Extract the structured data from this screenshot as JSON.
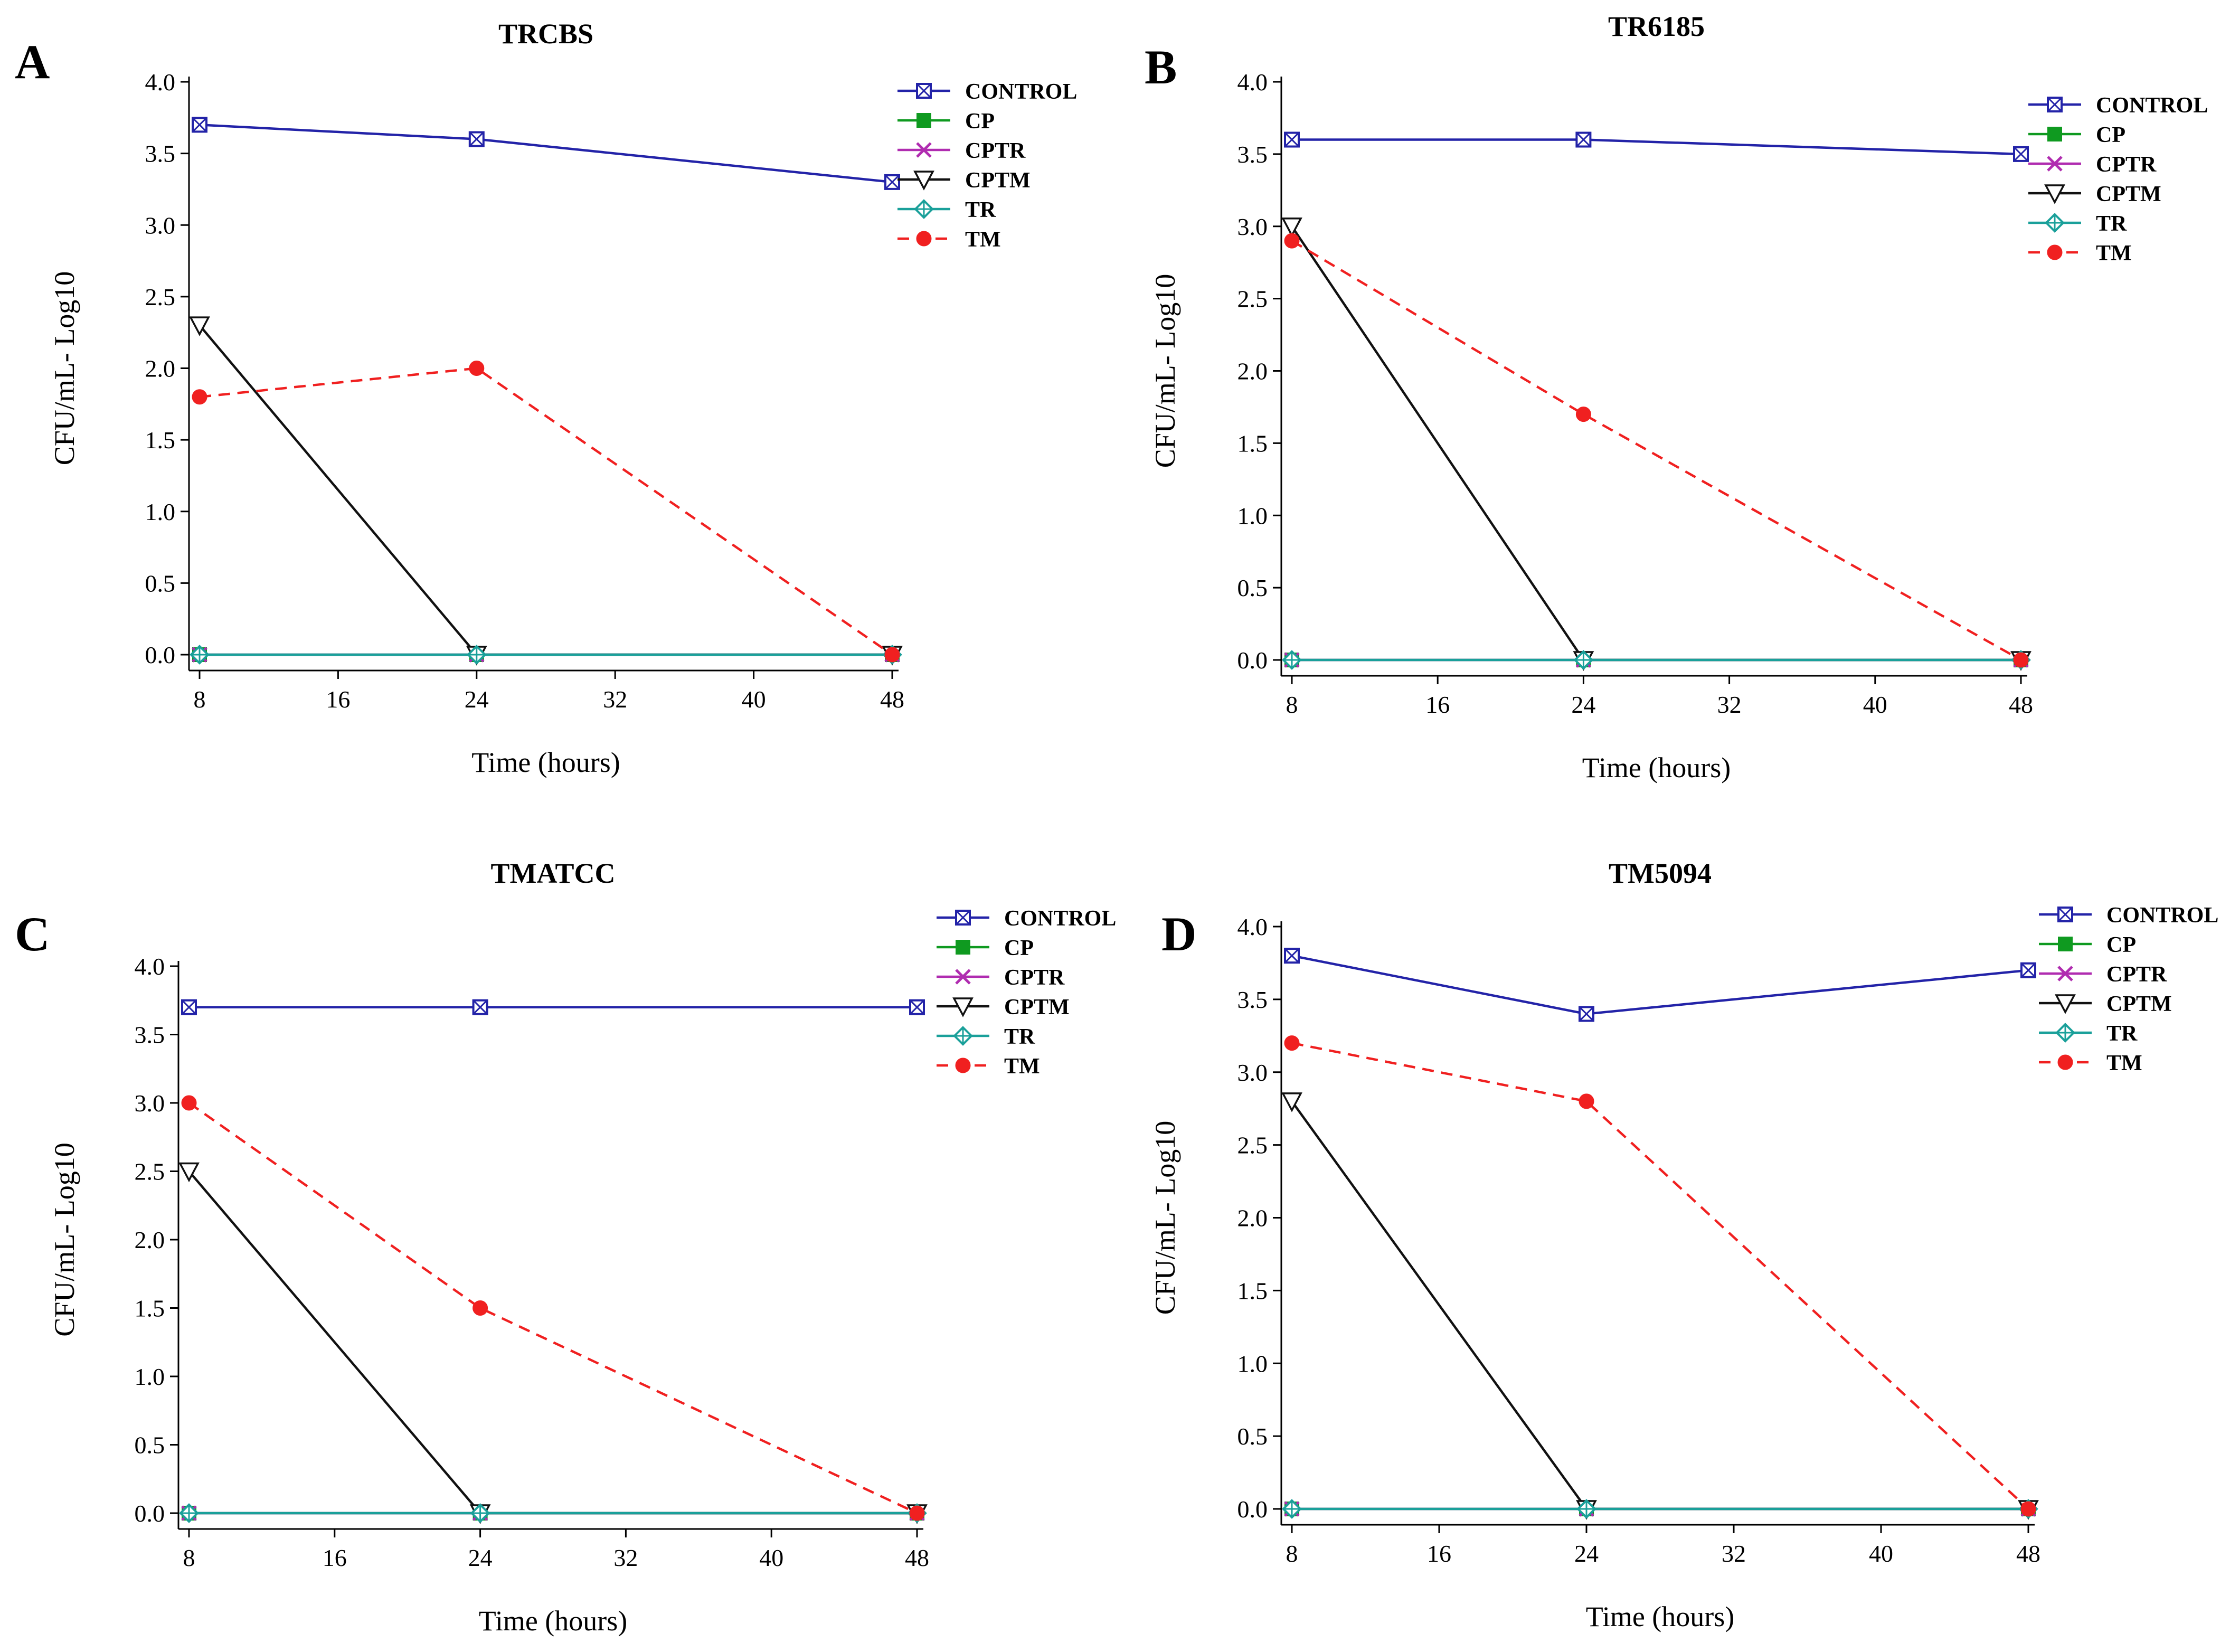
{
  "figure": {
    "panels": [
      "A",
      "B",
      "C",
      "D"
    ],
    "legend_labels": [
      "CONTROL",
      "CP",
      "CPTR",
      "CPTM",
      "TR",
      "TM"
    ]
  },
  "series_styles": [
    {
      "name": "CONTROL",
      "color": "#2323a8",
      "dash": "solid",
      "marker": "square-x"
    },
    {
      "name": "CP",
      "color": "#0f9a20",
      "dash": "solid",
      "marker": "filled-square"
    },
    {
      "name": "CPTR",
      "color": "#b02cb0",
      "dash": "solid",
      "marker": "x"
    },
    {
      "name": "CPTM",
      "color": "#111111",
      "dash": "solid",
      "marker": "triangle-down"
    },
    {
      "name": "TR",
      "color": "#1aa09a",
      "dash": "solid",
      "marker": "diamond-plus"
    },
    {
      "name": "TM",
      "color": "#f02020",
      "dash": "dashed",
      "marker": "filled-circle"
    }
  ],
  "chart_data": [
    {
      "type": "line",
      "panel": "A",
      "title": "TRCBS",
      "xlabel": "Time (hours)",
      "ylabel": "CFU/mL- Log10",
      "x": [
        8,
        24,
        48
      ],
      "xticks": [
        "8",
        "16",
        "24",
        "32",
        "40",
        "48"
      ],
      "xlim": [
        8,
        48
      ],
      "yticks": [
        "0.0",
        "0.5",
        "1.0",
        "1.5",
        "2.0",
        "2.5",
        "3.0",
        "3.5",
        "4.0"
      ],
      "ylim": [
        0,
        4
      ],
      "legend_position": "top-right",
      "series": [
        {
          "name": "CONTROL",
          "values": [
            3.7,
            3.6,
            3.3
          ]
        },
        {
          "name": "CP",
          "values": [
            0,
            0,
            0
          ]
        },
        {
          "name": "CPTR",
          "values": [
            0,
            0,
            0
          ]
        },
        {
          "name": "CPTM",
          "values": [
            2.3,
            0,
            0
          ]
        },
        {
          "name": "TR",
          "values": [
            0,
            0,
            0
          ]
        },
        {
          "name": "TM",
          "values": [
            1.8,
            2.0,
            0
          ]
        }
      ]
    },
    {
      "type": "line",
      "panel": "B",
      "title": "TR6185",
      "xlabel": "Time (hours)",
      "ylabel": "CFU/mL- Log10",
      "x": [
        8,
        24,
        48
      ],
      "xticks": [
        "8",
        "16",
        "24",
        "32",
        "40",
        "48"
      ],
      "xlim": [
        8,
        48
      ],
      "yticks": [
        "0.0",
        "0.5",
        "1.0",
        "1.5",
        "2.0",
        "2.5",
        "3.0",
        "3.5",
        "4.0"
      ],
      "ylim": [
        0,
        4
      ],
      "legend_position": "top-right",
      "series": [
        {
          "name": "CONTROL",
          "values": [
            3.6,
            3.6,
            3.5
          ]
        },
        {
          "name": "CP",
          "values": [
            0,
            0,
            0
          ]
        },
        {
          "name": "CPTR",
          "values": [
            0,
            0,
            0
          ]
        },
        {
          "name": "CPTM",
          "values": [
            3.0,
            0,
            0
          ]
        },
        {
          "name": "TR",
          "values": [
            0,
            0,
            0
          ]
        },
        {
          "name": "TM",
          "values": [
            2.9,
            1.7,
            0
          ]
        }
      ]
    },
    {
      "type": "line",
      "panel": "C",
      "title": "TMATCC",
      "xlabel": "Time (hours)",
      "ylabel": "CFU/mL- Log10",
      "x": [
        8,
        24,
        48
      ],
      "xticks": [
        "8",
        "16",
        "24",
        "32",
        "40",
        "48"
      ],
      "xlim": [
        8,
        48
      ],
      "yticks": [
        "0.0",
        "0.5",
        "1.0",
        "1.5",
        "2.0",
        "2.5",
        "3.0",
        "3.5",
        "4.0"
      ],
      "ylim": [
        0,
        4
      ],
      "legend_position": "top-right",
      "series": [
        {
          "name": "CONTROL",
          "values": [
            3.7,
            3.7,
            3.7
          ]
        },
        {
          "name": "CP",
          "values": [
            0,
            0,
            0
          ]
        },
        {
          "name": "CPTR",
          "values": [
            0,
            0,
            0
          ]
        },
        {
          "name": "CPTM",
          "values": [
            2.5,
            0,
            0
          ]
        },
        {
          "name": "TR",
          "values": [
            0,
            0,
            0
          ]
        },
        {
          "name": "TM",
          "values": [
            3.0,
            1.5,
            0
          ]
        }
      ]
    },
    {
      "type": "line",
      "panel": "D",
      "title": "TM5094",
      "xlabel": "Time (hours)",
      "ylabel": "CFU/mL- Log10",
      "x": [
        8,
        24,
        48
      ],
      "xticks": [
        "8",
        "16",
        "24",
        "32",
        "40",
        "48"
      ],
      "xlim": [
        8,
        48
      ],
      "yticks": [
        "0.0",
        "0.5",
        "1.0",
        "1.5",
        "2.0",
        "2.5",
        "3.0",
        "3.5",
        "4.0"
      ],
      "ylim": [
        0,
        4
      ],
      "legend_position": "top-right",
      "series": [
        {
          "name": "CONTROL",
          "values": [
            3.8,
            3.4,
            3.7
          ]
        },
        {
          "name": "CP",
          "values": [
            0,
            0,
            0
          ]
        },
        {
          "name": "CPTR",
          "values": [
            0,
            0,
            0
          ]
        },
        {
          "name": "CPTM",
          "values": [
            2.8,
            0,
            0
          ]
        },
        {
          "name": "TR",
          "values": [
            0,
            0,
            0
          ]
        },
        {
          "name": "TM",
          "values": [
            3.2,
            2.8,
            0
          ]
        }
      ]
    }
  ]
}
